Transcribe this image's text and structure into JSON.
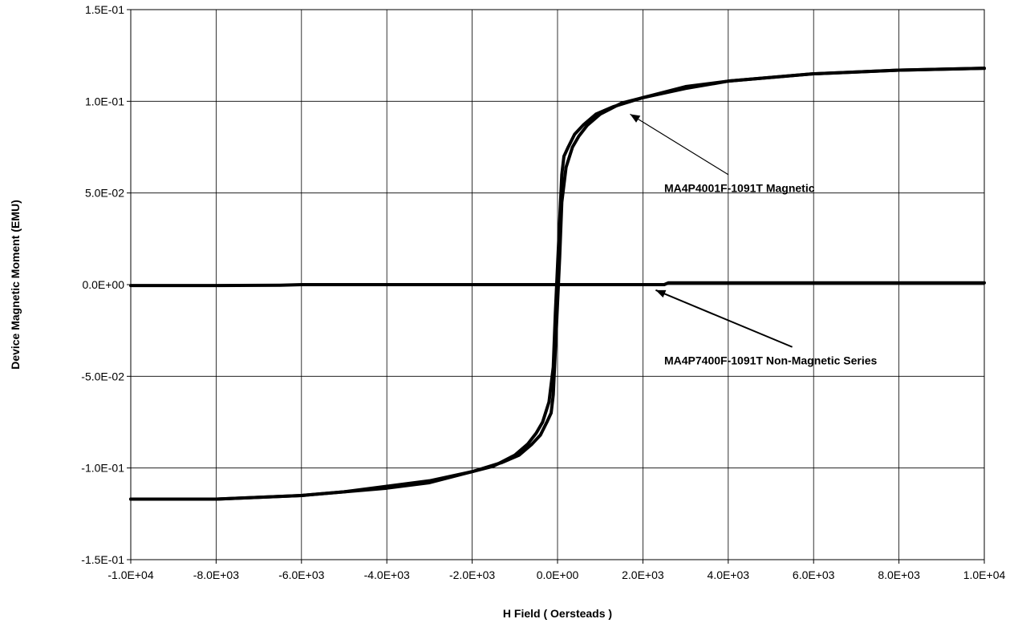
{
  "chart_data": {
    "type": "line",
    "title": "",
    "xlabel": "H Field ( Oersteads )",
    "ylabel": "Device Magnetic Moment (EMU)",
    "xlim": [
      -10000,
      10000
    ],
    "ylim": [
      -0.15,
      0.15
    ],
    "x_ticks": [
      -10000,
      -8000,
      -6000,
      -4000,
      -2000,
      0,
      2000,
      4000,
      6000,
      8000,
      10000
    ],
    "x_tick_labels": [
      "-1.0E+04",
      "-8.0E+03",
      "-6.0E+03",
      "-4.0E+03",
      "-2.0E+03",
      "0.0E+00",
      "2.0E+03",
      "4.0E+03",
      "6.0E+03",
      "8.0E+03",
      "1.0E+04"
    ],
    "y_ticks": [
      -0.15,
      -0.1,
      -0.05,
      0,
      0.05,
      0.1,
      0.15
    ],
    "y_tick_labels": [
      "-1.5E-01",
      "-1.0E-01",
      "-5.0E-02",
      "0.0E+00",
      "5.0E-02",
      "1.0E-01",
      "1.5E-01"
    ],
    "grid": true,
    "line_color": "#000000",
    "series": [
      {
        "name": "MA4P4001F-1091T Magnetic",
        "branch": "descending",
        "x": [
          10000,
          8000,
          6000,
          4000,
          3000,
          2000,
          1500,
          1000,
          700,
          500,
          350,
          200,
          100,
          50,
          0,
          -50,
          -100,
          -150,
          -250,
          -400,
          -600,
          -900,
          -1300,
          -2000,
          -3000,
          -4000,
          -5000,
          -6000,
          -7000,
          -8000,
          -9000,
          -10000
        ],
        "y": [
          0.118,
          0.117,
          0.115,
          0.111,
          0.108,
          0.102,
          0.099,
          0.093,
          0.087,
          0.081,
          0.075,
          0.064,
          0.045,
          0.015,
          -0.01,
          -0.035,
          -0.06,
          -0.07,
          -0.075,
          -0.082,
          -0.087,
          -0.093,
          -0.097,
          -0.102,
          -0.107,
          -0.11,
          -0.113,
          -0.115,
          -0.116,
          -0.117,
          -0.117,
          -0.117
        ]
      },
      {
        "name": "MA4P4001F-1091T Magnetic",
        "branch": "ascending",
        "x": [
          -10000,
          -8000,
          -6000,
          -4000,
          -3000,
          -2000,
          -1500,
          -1000,
          -700,
          -500,
          -350,
          -200,
          -100,
          -50,
          0,
          50,
          100,
          150,
          250,
          400,
          600,
          900,
          1300,
          2000,
          3000,
          4000,
          6000,
          8000,
          10000
        ],
        "y": [
          -0.117,
          -0.117,
          -0.115,
          -0.111,
          -0.108,
          -0.102,
          -0.099,
          -0.093,
          -0.087,
          -0.081,
          -0.075,
          -0.064,
          -0.045,
          -0.015,
          0.01,
          0.035,
          0.06,
          0.07,
          0.075,
          0.082,
          0.087,
          0.093,
          0.097,
          0.102,
          0.107,
          0.111,
          0.115,
          0.117,
          0.118
        ]
      },
      {
        "name": "MA4P7400F-1091T Non-Magnetic Series",
        "x": [
          -10000,
          -8000,
          -6500,
          -6000,
          -4000,
          -2000,
          0,
          2000,
          2500,
          2600,
          4000,
          6000,
          8000,
          10000
        ],
        "y": [
          -0.0005,
          -0.0005,
          -0.0003,
          0,
          0,
          0,
          0,
          0,
          0,
          0.001,
          0.001,
          0.001,
          0.001,
          0.001
        ]
      }
    ],
    "annotations": [
      {
        "text": "MA4P4001F-1091T Magnetic",
        "text_at": [
          2500,
          0.0505
        ],
        "arrow_from": [
          4000,
          0.06
        ],
        "arrow_to": [
          1700,
          0.093
        ]
      },
      {
        "text": "MA4P7400F-1091T Non-Magnetic Series",
        "text_at": [
          2500,
          -0.0435
        ],
        "arrow_from": [
          5500,
          -0.034
        ],
        "arrow_to": [
          2300,
          -0.003
        ]
      }
    ]
  }
}
